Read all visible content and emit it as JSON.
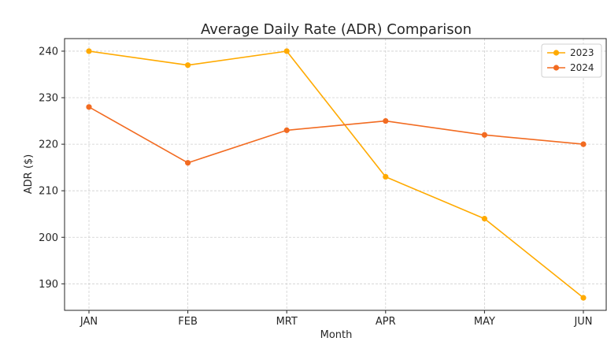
{
  "chart_data": {
    "type": "line",
    "title": "Average Daily Rate (ADR) Comparison",
    "xlabel": "Month",
    "ylabel": "ADR ($)",
    "categories": [
      "JAN",
      "FEB",
      "MRT",
      "APR",
      "MAY",
      "JUN"
    ],
    "yticks": [
      190,
      200,
      210,
      220,
      230,
      240
    ],
    "ylim": [
      184.3,
      242.7
    ],
    "grid": true,
    "legend_position": "top-right",
    "series": [
      {
        "name": "2023",
        "color": "#ffaa00",
        "values": [
          240,
          237,
          240,
          213,
          204,
          187
        ]
      },
      {
        "name": "2024",
        "color": "#f26b21",
        "values": [
          228,
          216,
          223,
          225,
          222,
          220
        ]
      }
    ]
  }
}
